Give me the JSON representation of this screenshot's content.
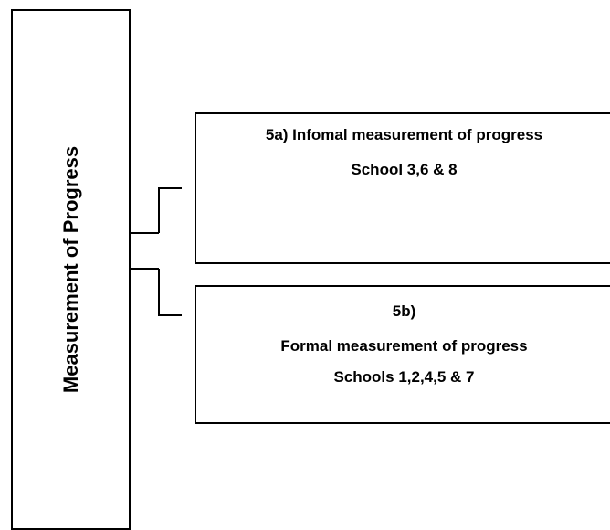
{
  "main": {
    "label": "Measurement of Progress"
  },
  "branches": [
    {
      "title": "5a) Infomal measurement of progress",
      "schools": "School 3,6 & 8"
    },
    {
      "title": "5b)",
      "description": "Formal measurement of progress",
      "schools": "Schools 1,2,4,5 & 7"
    }
  ],
  "colors": {
    "line": "#000000",
    "background": "#ffffff"
  }
}
